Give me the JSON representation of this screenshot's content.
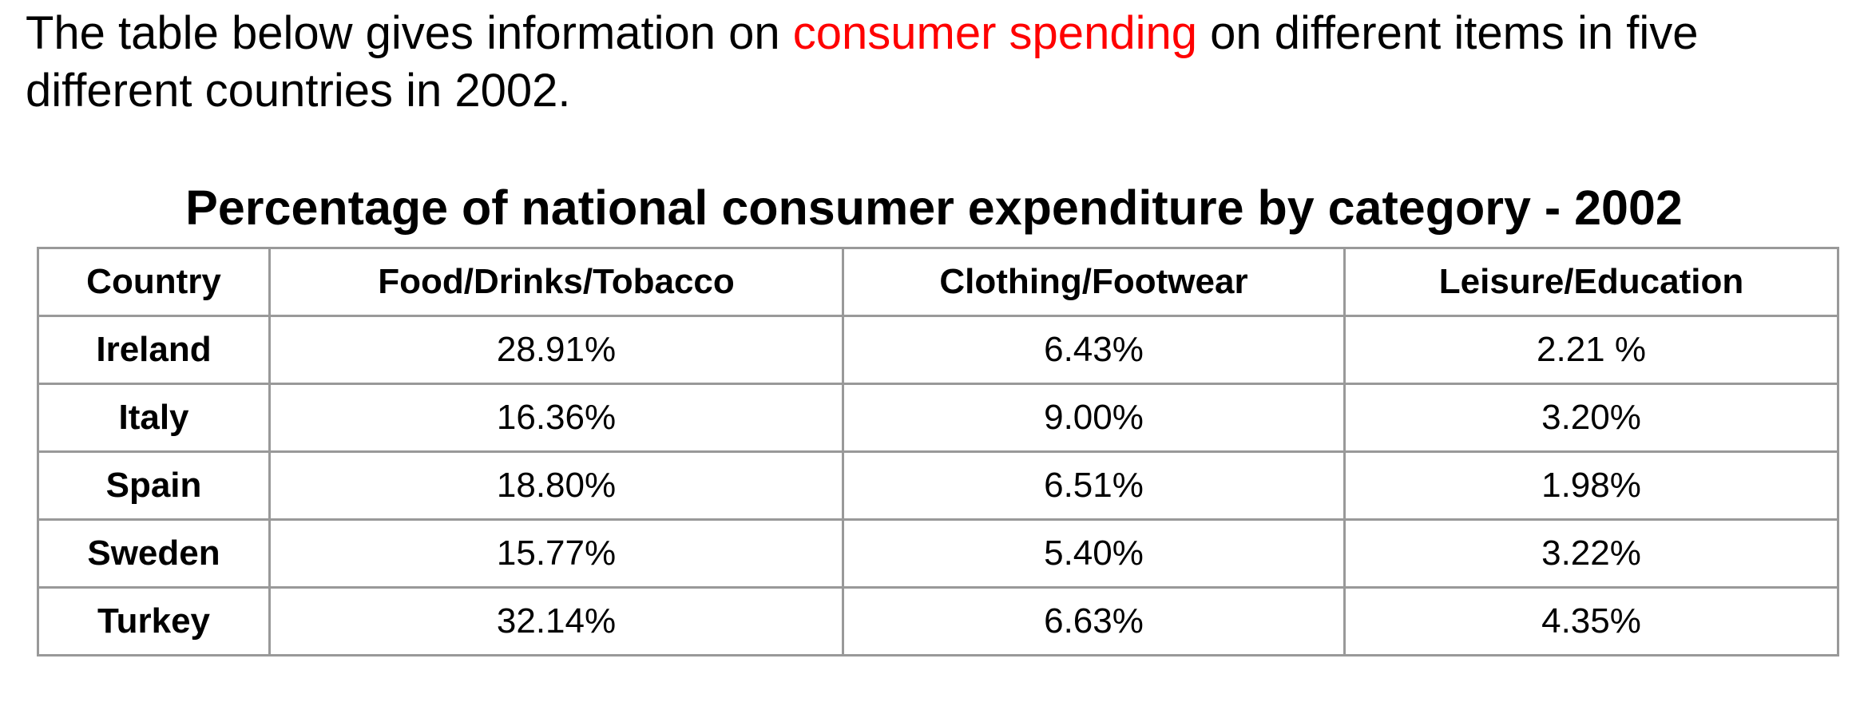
{
  "intro": {
    "before": "The table below gives information on ",
    "highlight": "consumer spending",
    "after": " on different items in five different countries in 2002.",
    "highlight_color": "#ff0000"
  },
  "chart_data": {
    "type": "table",
    "title": "Percentage of national consumer expenditure by category - 2002",
    "columns": [
      "Country",
      "Food/Drinks/Tobacco",
      "Clothing/Footwear",
      "Leisure/Education"
    ],
    "rows": [
      [
        "Ireland",
        "28.91%",
        "6.43%",
        "2.21 %"
      ],
      [
        "Italy",
        "16.36%",
        "9.00%",
        "3.20%"
      ],
      [
        "Spain",
        "18.80%",
        "6.51%",
        "1.98%"
      ],
      [
        "Sweden",
        "15.77%",
        "5.40%",
        "3.22%"
      ],
      [
        "Turkey",
        "32.14%",
        "6.63%",
        "4.35%"
      ]
    ],
    "grid": true,
    "border_color": "#999999"
  }
}
